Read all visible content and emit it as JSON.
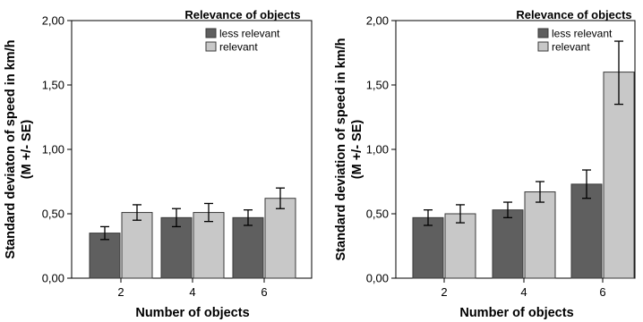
{
  "chart_data": [
    {
      "type": "bar",
      "categories": [
        "2",
        "4",
        "6"
      ],
      "series": [
        {
          "name": "less relevant",
          "color": "#5f5f5f",
          "values": [
            0.35,
            0.47,
            0.47
          ],
          "se_low": [
            0.3,
            0.4,
            0.41
          ],
          "se_high": [
            0.4,
            0.54,
            0.53
          ]
        },
        {
          "name": "relevant",
          "color": "#c8c8c8",
          "values": [
            0.51,
            0.51,
            0.62
          ],
          "se_low": [
            0.45,
            0.44,
            0.54
          ],
          "se_high": [
            0.57,
            0.58,
            0.7
          ]
        }
      ],
      "ylabel_line1": "Standard deviaton of speed in km/h",
      "ylabel_line2": "(M +/- SE)",
      "xlabel": "Number of objects",
      "legend_title": "Relevance of objects",
      "legend_position": "top-right",
      "ylim": [
        0,
        2.0
      ],
      "yticks": [
        "0,00",
        "0,50",
        "1,00",
        "1,50",
        "2,00"
      ],
      "grid": false
    },
    {
      "type": "bar",
      "categories": [
        "2",
        "4",
        "6"
      ],
      "series": [
        {
          "name": "less relevant",
          "color": "#5f5f5f",
          "values": [
            0.47,
            0.53,
            0.73
          ],
          "se_low": [
            0.41,
            0.47,
            0.62
          ],
          "se_high": [
            0.53,
            0.59,
            0.84
          ]
        },
        {
          "name": "relevant",
          "color": "#c8c8c8",
          "values": [
            0.5,
            0.67,
            1.6
          ],
          "se_low": [
            0.43,
            0.59,
            1.35
          ],
          "se_high": [
            0.57,
            0.75,
            1.84
          ]
        }
      ],
      "ylabel_line1": "Standard deviation of speed in km/h",
      "ylabel_line2": "(M +/- SE)",
      "xlabel": "Number of objects",
      "legend_title": "Relevance of objects",
      "legend_position": "top-right",
      "ylim": [
        0,
        2.0
      ],
      "yticks": [
        "0,00",
        "0,50",
        "1,00",
        "1,50",
        "2,00"
      ],
      "grid": false
    }
  ]
}
